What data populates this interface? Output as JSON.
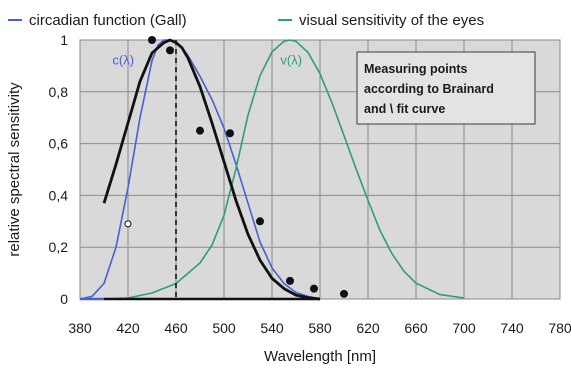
{
  "chart_data": {
    "type": "line",
    "xlabel": "Wavelength [nm]",
    "ylabel": "relative spectral sensitivity",
    "xlim": [
      380,
      780
    ],
    "ylim": [
      0,
      1
    ],
    "x_ticks": [
      380,
      420,
      460,
      500,
      540,
      580,
      620,
      660,
      700,
      740,
      780
    ],
    "x_tick_labels": [
      "380",
      "420",
      "460",
      "500",
      "540",
      "580",
      "620",
      "660",
      "700",
      "740",
      "780"
    ],
    "y_ticks": [
      0,
      0.2,
      0.4,
      0.6,
      0.8,
      1
    ],
    "y_tick_labels": [
      "0",
      "0,2",
      "0,4",
      "0,6",
      "0,8",
      "1"
    ],
    "grid": true,
    "legend_position": "top",
    "legend": [
      {
        "label": "circadian function (Gall)",
        "color": "#4a5fd0"
      },
      {
        "label": "visual sensitivity of the eyes",
        "color": "#2e9e78"
      }
    ],
    "annotation": "Measuring points according to Brainard and \\ fit curve",
    "curve_labels": [
      {
        "text": "c(λ)",
        "color": "#4a5fd0",
        "x": 416,
        "y": 0.92
      },
      {
        "text": "v(λ)",
        "color": "#2e9e78",
        "x": 556,
        "y": 0.92
      }
    ],
    "peak_marker_x": 460,
    "series": [
      {
        "name": "circadian function (Gall)",
        "color": "#4a5fd0",
        "x": [
          380,
          390,
          400,
          410,
          420,
          430,
          440,
          445,
          450,
          455,
          460,
          465,
          470,
          480,
          490,
          500,
          510,
          520,
          530,
          540,
          550,
          560,
          570,
          580
        ],
        "y": [
          0,
          0.01,
          0.06,
          0.2,
          0.43,
          0.7,
          0.92,
          0.98,
          1.0,
          1.0,
          0.99,
          0.97,
          0.94,
          0.86,
          0.77,
          0.66,
          0.52,
          0.37,
          0.22,
          0.12,
          0.06,
          0.025,
          0.01,
          0
        ]
      },
      {
        "name": "visual sensitivity of the eyes",
        "color": "#2e9e78",
        "x": [
          400,
          420,
          440,
          460,
          480,
          490,
          500,
          510,
          520,
          530,
          540,
          550,
          555,
          560,
          570,
          580,
          590,
          600,
          610,
          620,
          630,
          640,
          650,
          660,
          680,
          700
        ],
        "y": [
          0,
          0.004,
          0.023,
          0.06,
          0.139,
          0.208,
          0.323,
          0.503,
          0.71,
          0.862,
          0.954,
          0.995,
          1.0,
          0.995,
          0.952,
          0.87,
          0.757,
          0.631,
          0.503,
          0.381,
          0.265,
          0.175,
          0.107,
          0.061,
          0.017,
          0.004
        ]
      },
      {
        "name": "fit curve",
        "color": "#111111",
        "x": [
          400,
          410,
          420,
          430,
          440,
          450,
          455,
          460,
          465,
          470,
          480,
          490,
          500,
          510,
          520,
          530,
          540,
          550,
          560,
          570,
          580
        ],
        "y": [
          0.37,
          0.52,
          0.68,
          0.84,
          0.95,
          0.99,
          1.0,
          0.99,
          0.97,
          0.93,
          0.82,
          0.68,
          0.53,
          0.38,
          0.25,
          0.15,
          0.08,
          0.04,
          0.015,
          0.005,
          0
        ]
      }
    ],
    "points": {
      "name": "Measuring points according to Brainard",
      "x": [
        440,
        455,
        480,
        505,
        530,
        555,
        575,
        600
      ],
      "y": [
        1.0,
        0.96,
        0.65,
        0.64,
        0.3,
        0.07,
        0.04,
        0.02
      ]
    },
    "open_point": {
      "x": 420,
      "y": 0.29
    },
    "baseline_segments": [
      {
        "color": "#4a5fd0",
        "x": [
          380,
          400
        ]
      },
      {
        "color": "#111111",
        "x": [
          400,
          580
        ]
      }
    ]
  }
}
